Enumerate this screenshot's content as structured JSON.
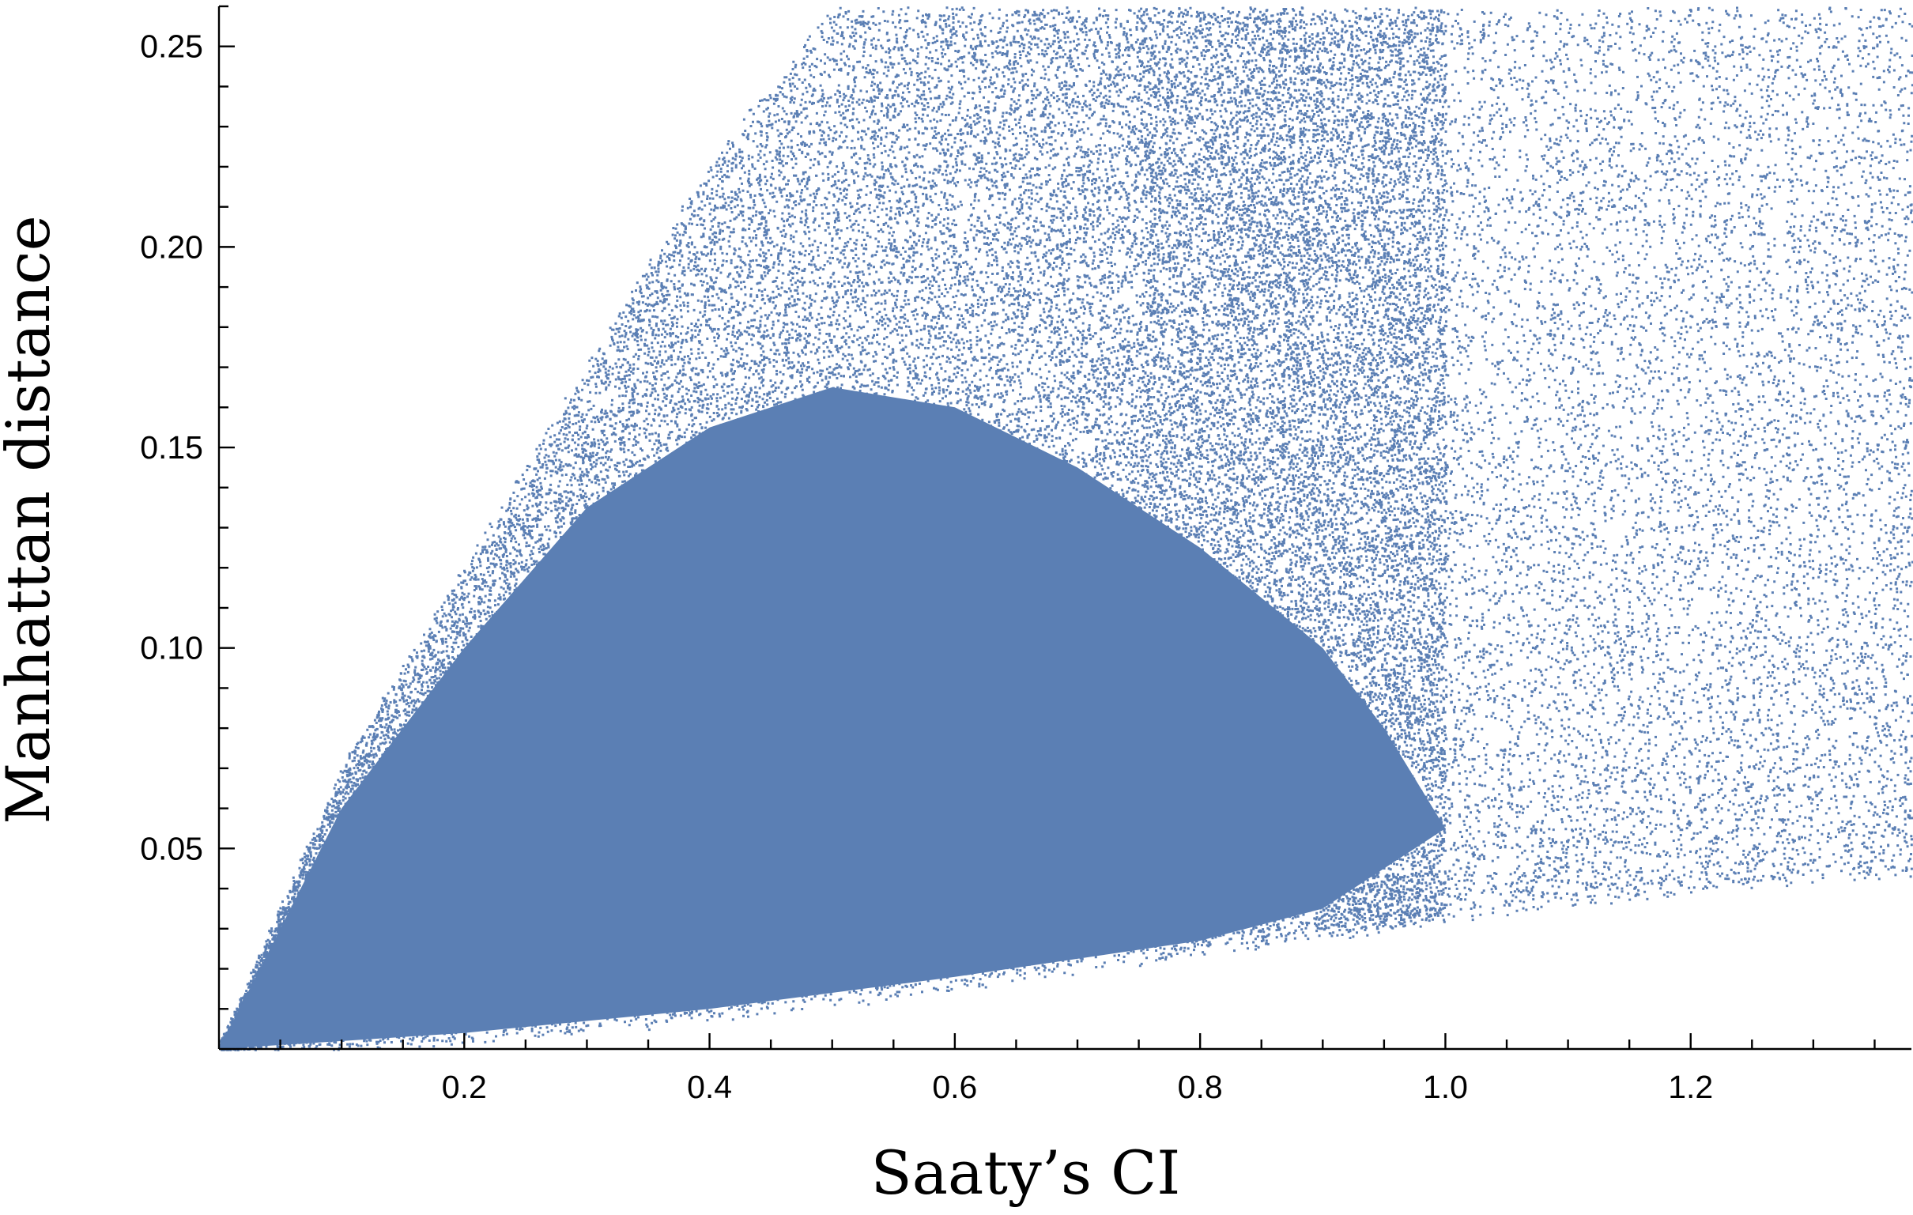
{
  "chart_data": {
    "type": "scatter",
    "xlabel": "Saaty’s CI",
    "ylabel": "Manhattan distance",
    "xlim": [
      0,
      1.38
    ],
    "ylim": [
      0,
      0.26
    ],
    "x_ticks": [
      {
        "value": 0.2,
        "label": "0.2"
      },
      {
        "value": 0.4,
        "label": "0.4"
      },
      {
        "value": 0.6,
        "label": "0.6"
      },
      {
        "value": 0.8,
        "label": "0.8"
      },
      {
        "value": 1.0,
        "label": "1.0"
      },
      {
        "value": 1.2,
        "label": "1.2"
      }
    ],
    "y_ticks": [
      {
        "value": 0.05,
        "label": "0.05"
      },
      {
        "value": 0.1,
        "label": "0.10"
      },
      {
        "value": 0.15,
        "label": "0.15"
      },
      {
        "value": 0.2,
        "label": "0.20"
      },
      {
        "value": 0.25,
        "label": "0.25"
      }
    ],
    "x_minor_step": 0.05,
    "y_minor_step": 0.01,
    "grid": false,
    "legend": "none",
    "series": [
      {
        "color": "#5b7fb4",
        "point_cloud": {
          "description_of_shape": "dense cloud; lower bound rises from origin, upper bound rises steeply then saturates at top",
          "density_core_x": [
            0.0,
            1.0
          ],
          "upper_envelope": [
            [
              0.0,
              0.0
            ],
            [
              0.1,
              0.07
            ],
            [
              0.2,
              0.12
            ],
            [
              0.3,
              0.17
            ],
            [
              0.4,
              0.22
            ],
            [
              0.5,
              0.26
            ],
            [
              1.38,
              0.26
            ]
          ],
          "lower_envelope": [
            [
              0.0,
              0.0
            ],
            [
              0.2,
              0.003
            ],
            [
              0.4,
              0.008
            ],
            [
              0.6,
              0.016
            ],
            [
              0.8,
              0.025
            ],
            [
              1.0,
              0.033
            ],
            [
              1.2,
              0.04
            ],
            [
              1.38,
              0.045
            ]
          ]
        }
      }
    ]
  }
}
